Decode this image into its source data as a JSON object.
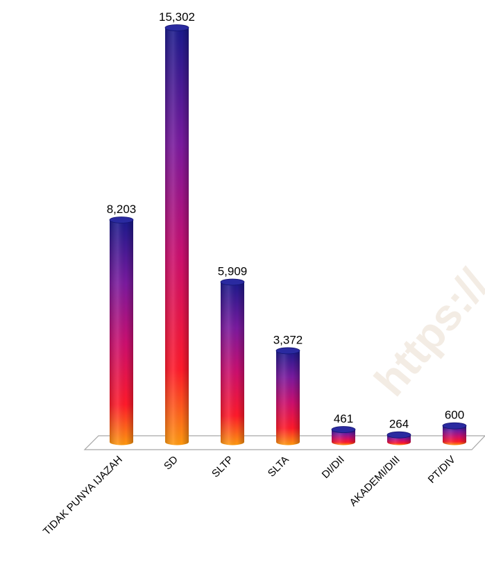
{
  "chart_data": {
    "type": "bar",
    "categories": [
      "TIDAK PUNYA IJAZAH",
      "SD",
      "SLTP",
      "SLTA",
      "DI/DII",
      "AKADEMI/DIII",
      "PT/DIV"
    ],
    "values": [
      8203,
      15302,
      5909,
      3372,
      461,
      264,
      600
    ],
    "value_labels": [
      "8,203",
      "15,302",
      "5,909",
      "3,372",
      "461",
      "264",
      "600"
    ],
    "title": "",
    "xlabel": "",
    "ylabel": "",
    "ylim": [
      0,
      15302
    ],
    "grid": false,
    "legend": "none",
    "colors": {
      "top": "#1a1a8c",
      "upper_mid": "#7a1a9e",
      "lower_mid": "#cc0f6e",
      "low": "#ff1a2a",
      "bottom": "#ff9a10"
    }
  },
  "watermark": {
    "text": "https://"
  }
}
